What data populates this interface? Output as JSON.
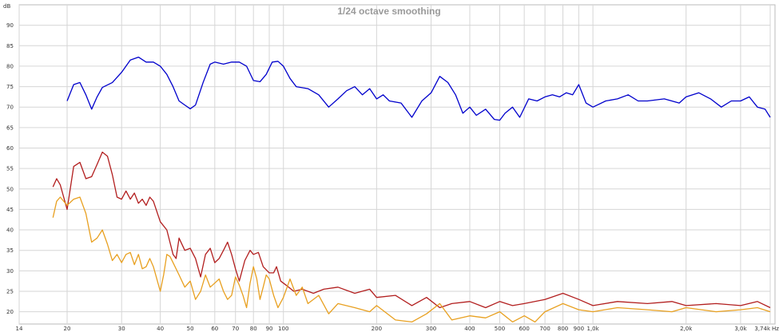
{
  "chart_data": {
    "type": "line",
    "title": "1/24 octave smoothing",
    "ylabel": "dB",
    "xlabel": "Hz",
    "x_scale": "log",
    "xlim": [
      14,
      3740
    ],
    "ylim": [
      17,
      95
    ],
    "grid": true,
    "y_ticks": [
      90,
      85,
      80,
      75,
      70,
      65,
      60,
      55,
      50,
      45,
      40,
      35,
      30,
      25,
      20
    ],
    "x_ticks": [
      {
        "value": 14,
        "label": "14"
      },
      {
        "value": 20,
        "label": "20"
      },
      {
        "value": 30,
        "label": "30"
      },
      {
        "value": 40,
        "label": "40"
      },
      {
        "value": 50,
        "label": "50"
      },
      {
        "value": 60,
        "label": "60"
      },
      {
        "value": 70,
        "label": "70"
      },
      {
        "value": 80,
        "label": "80"
      },
      {
        "value": 90,
        "label": "90"
      },
      {
        "value": 100,
        "label": "100"
      },
      {
        "value": 200,
        "label": "200"
      },
      {
        "value": 300,
        "label": "300"
      },
      {
        "value": 400,
        "label": "400"
      },
      {
        "value": 500,
        "label": "500"
      },
      {
        "value": 600,
        "label": "600"
      },
      {
        "value": 700,
        "label": "700"
      },
      {
        "value": 800,
        "label": "800"
      },
      {
        "value": 900,
        "label": "900"
      },
      {
        "value": 1000,
        "label": "1,0k"
      },
      {
        "value": 2000,
        "label": "2,0k"
      },
      {
        "value": 3000,
        "label": "3,0k"
      },
      {
        "value": 3740,
        "label": "3,74k"
      }
    ],
    "series": [
      {
        "color": "#0000cc",
        "points": [
          [
            20,
            71.5
          ],
          [
            21,
            75.5
          ],
          [
            22,
            76
          ],
          [
            23,
            73
          ],
          [
            24,
            69.5
          ],
          [
            25,
            72.5
          ],
          [
            26,
            74.8
          ],
          [
            28,
            76
          ],
          [
            30,
            78.5
          ],
          [
            32,
            81.5
          ],
          [
            34,
            82.2
          ],
          [
            36,
            81
          ],
          [
            38,
            81
          ],
          [
            40,
            80
          ],
          [
            42,
            78
          ],
          [
            44,
            75
          ],
          [
            46,
            71.5
          ],
          [
            48,
            70.5
          ],
          [
            50,
            69.6
          ],
          [
            52,
            70.5
          ],
          [
            55,
            76
          ],
          [
            58,
            80.5
          ],
          [
            60,
            81
          ],
          [
            64,
            80.5
          ],
          [
            68,
            81
          ],
          [
            72,
            81
          ],
          [
            76,
            80
          ],
          [
            80,
            76.5
          ],
          [
            84,
            76.2
          ],
          [
            88,
            78
          ],
          [
            92,
            81
          ],
          [
            96,
            81.2
          ],
          [
            100,
            80
          ],
          [
            105,
            77
          ],
          [
            110,
            75
          ],
          [
            120,
            74.5
          ],
          [
            130,
            73
          ],
          [
            140,
            70
          ],
          [
            150,
            72
          ],
          [
            160,
            74
          ],
          [
            170,
            75
          ],
          [
            180,
            73
          ],
          [
            190,
            74.5
          ],
          [
            200,
            72
          ],
          [
            210,
            73
          ],
          [
            220,
            71.5
          ],
          [
            240,
            71
          ],
          [
            260,
            67.5
          ],
          [
            280,
            71.5
          ],
          [
            300,
            73.5
          ],
          [
            320,
            77.5
          ],
          [
            340,
            76
          ],
          [
            360,
            73
          ],
          [
            380,
            68.5
          ],
          [
            400,
            70
          ],
          [
            420,
            68
          ],
          [
            450,
            69.5
          ],
          [
            480,
            67
          ],
          [
            500,
            66.8
          ],
          [
            520,
            68.5
          ],
          [
            550,
            70
          ],
          [
            580,
            67.5
          ],
          [
            620,
            72
          ],
          [
            660,
            71.5
          ],
          [
            700,
            72.5
          ],
          [
            740,
            73
          ],
          [
            780,
            72.5
          ],
          [
            820,
            73.5
          ],
          [
            860,
            73
          ],
          [
            900,
            75.5
          ],
          [
            950,
            71
          ],
          [
            1000,
            70
          ],
          [
            1100,
            71.5
          ],
          [
            1200,
            72
          ],
          [
            1300,
            73
          ],
          [
            1400,
            71.5
          ],
          [
            1500,
            71.5
          ],
          [
            1700,
            72
          ],
          [
            1900,
            71
          ],
          [
            2000,
            72.5
          ],
          [
            2200,
            73.5
          ],
          [
            2400,
            72
          ],
          [
            2600,
            70
          ],
          [
            2800,
            71.5
          ],
          [
            3000,
            71.5
          ],
          [
            3200,
            72.5
          ],
          [
            3400,
            70
          ],
          [
            3600,
            69.5
          ],
          [
            3740,
            67.5
          ]
        ]
      },
      {
        "color": "#b21e1e",
        "points": [
          [
            18,
            50.5
          ],
          [
            18.5,
            52.5
          ],
          [
            19,
            51
          ],
          [
            20,
            45
          ],
          [
            21,
            55.5
          ],
          [
            22,
            56.5
          ],
          [
            23,
            52.5
          ],
          [
            24,
            53
          ],
          [
            25,
            56
          ],
          [
            26,
            59
          ],
          [
            27,
            58
          ],
          [
            28,
            53.5
          ],
          [
            29,
            48
          ],
          [
            30,
            47.5
          ],
          [
            31,
            49.5
          ],
          [
            32,
            47.5
          ],
          [
            33,
            49
          ],
          [
            34,
            46.5
          ],
          [
            35,
            47.5
          ],
          [
            36,
            46
          ],
          [
            37,
            48
          ],
          [
            38,
            47
          ],
          [
            40,
            42
          ],
          [
            42,
            40
          ],
          [
            44,
            34
          ],
          [
            45,
            33
          ],
          [
            46,
            38
          ],
          [
            48,
            35
          ],
          [
            50,
            35.5
          ],
          [
            52,
            33
          ],
          [
            54,
            28.5
          ],
          [
            56,
            34
          ],
          [
            58,
            35.5
          ],
          [
            60,
            32
          ],
          [
            62,
            33
          ],
          [
            64,
            35
          ],
          [
            66,
            37
          ],
          [
            68,
            34
          ],
          [
            70,
            30.5
          ],
          [
            72,
            27.5
          ],
          [
            75,
            32.5
          ],
          [
            78,
            35
          ],
          [
            80,
            34
          ],
          [
            83,
            34.5
          ],
          [
            86,
            31
          ],
          [
            90,
            29.5
          ],
          [
            93,
            29.5
          ],
          [
            95,
            31
          ],
          [
            98,
            27.5
          ],
          [
            102,
            26.5
          ],
          [
            108,
            25
          ],
          [
            115,
            25.5
          ],
          [
            125,
            24.5
          ],
          [
            135,
            25.5
          ],
          [
            150,
            26
          ],
          [
            170,
            24.5
          ],
          [
            190,
            25.5
          ],
          [
            200,
            23.5
          ],
          [
            230,
            24
          ],
          [
            260,
            21.5
          ],
          [
            290,
            23.5
          ],
          [
            320,
            21
          ],
          [
            350,
            22
          ],
          [
            400,
            22.5
          ],
          [
            450,
            21
          ],
          [
            500,
            22.5
          ],
          [
            550,
            21.5
          ],
          [
            600,
            22
          ],
          [
            700,
            23
          ],
          [
            800,
            24.5
          ],
          [
            900,
            23
          ],
          [
            1000,
            21.5
          ],
          [
            1200,
            22.5
          ],
          [
            1500,
            22
          ],
          [
            1800,
            22.5
          ],
          [
            2000,
            21.5
          ],
          [
            2500,
            22
          ],
          [
            3000,
            21.5
          ],
          [
            3400,
            22.5
          ],
          [
            3740,
            21
          ]
        ]
      },
      {
        "color": "#e8a020",
        "points": [
          [
            18,
            43
          ],
          [
            18.5,
            47
          ],
          [
            19,
            48
          ],
          [
            20,
            46
          ],
          [
            21,
            47.5
          ],
          [
            22,
            48
          ],
          [
            23,
            44
          ],
          [
            24,
            37
          ],
          [
            25,
            38
          ],
          [
            26,
            40
          ],
          [
            27,
            36.5
          ],
          [
            28,
            32.5
          ],
          [
            29,
            34
          ],
          [
            30,
            32
          ],
          [
            31,
            34
          ],
          [
            32,
            34.5
          ],
          [
            33,
            31.5
          ],
          [
            34,
            34
          ],
          [
            35,
            30.5
          ],
          [
            36,
            31
          ],
          [
            37,
            33
          ],
          [
            38,
            31
          ],
          [
            39,
            28
          ],
          [
            40,
            25
          ],
          [
            41,
            29
          ],
          [
            42,
            34
          ],
          [
            43,
            33.5
          ],
          [
            44,
            32
          ],
          [
            46,
            29
          ],
          [
            48,
            26
          ],
          [
            50,
            27.5
          ],
          [
            52,
            23
          ],
          [
            54,
            25
          ],
          [
            56,
            29
          ],
          [
            58,
            26
          ],
          [
            60,
            27
          ],
          [
            62,
            28
          ],
          [
            64,
            25
          ],
          [
            66,
            23
          ],
          [
            68,
            24
          ],
          [
            70,
            28.5
          ],
          [
            72,
            26.5
          ],
          [
            74,
            24
          ],
          [
            76,
            21
          ],
          [
            78,
            27
          ],
          [
            80,
            31
          ],
          [
            82,
            28
          ],
          [
            84,
            23
          ],
          [
            86,
            26
          ],
          [
            88,
            29
          ],
          [
            90,
            28
          ],
          [
            93,
            24
          ],
          [
            96,
            21
          ],
          [
            100,
            23.5
          ],
          [
            105,
            28
          ],
          [
            110,
            24
          ],
          [
            115,
            26
          ],
          [
            120,
            22
          ],
          [
            130,
            24
          ],
          [
            140,
            19.5
          ],
          [
            150,
            22
          ],
          [
            170,
            21
          ],
          [
            190,
            20
          ],
          [
            200,
            21.5
          ],
          [
            230,
            18
          ],
          [
            260,
            17.5
          ],
          [
            290,
            19.5
          ],
          [
            320,
            22
          ],
          [
            350,
            18
          ],
          [
            400,
            19
          ],
          [
            450,
            18.5
          ],
          [
            500,
            20
          ],
          [
            550,
            17.5
          ],
          [
            600,
            19
          ],
          [
            650,
            17.5
          ],
          [
            700,
            20
          ],
          [
            800,
            22
          ],
          [
            900,
            20.5
          ],
          [
            1000,
            20
          ],
          [
            1200,
            21
          ],
          [
            1500,
            20.5
          ],
          [
            1800,
            20
          ],
          [
            2000,
            21
          ],
          [
            2500,
            20
          ],
          [
            3000,
            20.5
          ],
          [
            3400,
            21
          ],
          [
            3740,
            20
          ]
        ]
      }
    ]
  }
}
